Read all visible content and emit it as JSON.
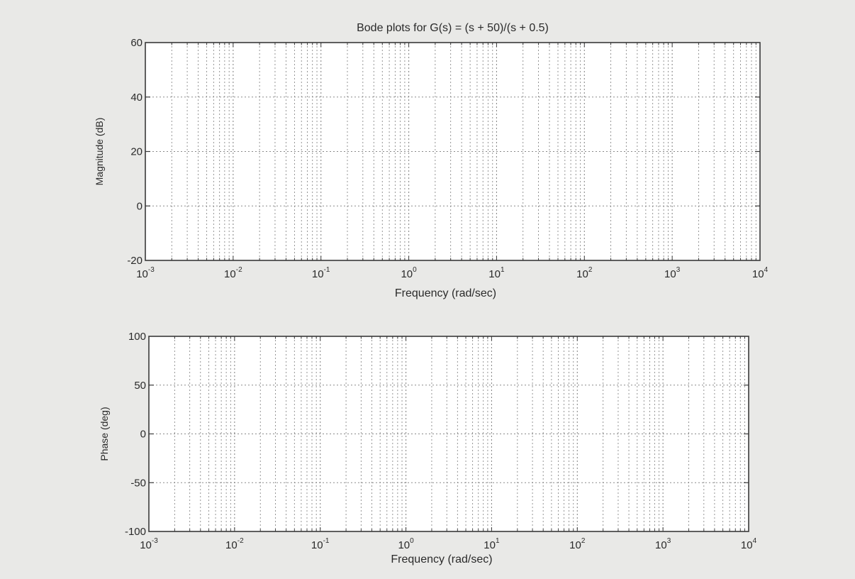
{
  "chart_data": [
    {
      "type": "line",
      "title": "Bode plots for G(s) = (s + 50)/(s + 0.5)",
      "xlabel": "Frequency (rad/sec)",
      "ylabel": "Magnitude (dB)",
      "xscale": "log",
      "xlim": [
        0.001,
        10000
      ],
      "ylim": [
        -20,
        60
      ],
      "grid": true,
      "y_ticks": [
        -20,
        0,
        20,
        40,
        60
      ],
      "y_tick_labels": [
        "-20",
        "0",
        "20",
        "40",
        "60"
      ],
      "x_ticks": [
        {
          "base": "10",
          "exp": "-3"
        },
        {
          "base": "10",
          "exp": "-2"
        },
        {
          "base": "10",
          "exp": "-1"
        },
        {
          "base": "10",
          "exp": "0"
        },
        {
          "base": "10",
          "exp": "1"
        },
        {
          "base": "10",
          "exp": "2"
        },
        {
          "base": "10",
          "exp": "3"
        },
        {
          "base": "10",
          "exp": "4"
        }
      ],
      "series": []
    },
    {
      "type": "line",
      "title": "",
      "xlabel": "Frequency (rad/sec)",
      "ylabel": "Phase (deg)",
      "xscale": "log",
      "xlim": [
        0.001,
        10000
      ],
      "ylim": [
        -100,
        100
      ],
      "grid": true,
      "y_ticks": [
        -100,
        -50,
        0,
        50,
        100
      ],
      "y_tick_labels": [
        "-100",
        "-50",
        "0",
        "50",
        "100"
      ],
      "x_ticks": [
        {
          "base": "10",
          "exp": "-3"
        },
        {
          "base": "10",
          "exp": "-2"
        },
        {
          "base": "10",
          "exp": "-1"
        },
        {
          "base": "10",
          "exp": "0"
        },
        {
          "base": "10",
          "exp": "1"
        },
        {
          "base": "10",
          "exp": "2"
        },
        {
          "base": "10",
          "exp": "3"
        },
        {
          "base": "10",
          "exp": "4"
        }
      ],
      "series": []
    }
  ],
  "colors": {
    "background": "#e9e9e7",
    "axes_face": "#ffffff",
    "axes_edge": "#3a3a3a",
    "grid": "#8a8a8a",
    "text": "#2a2a2a"
  }
}
